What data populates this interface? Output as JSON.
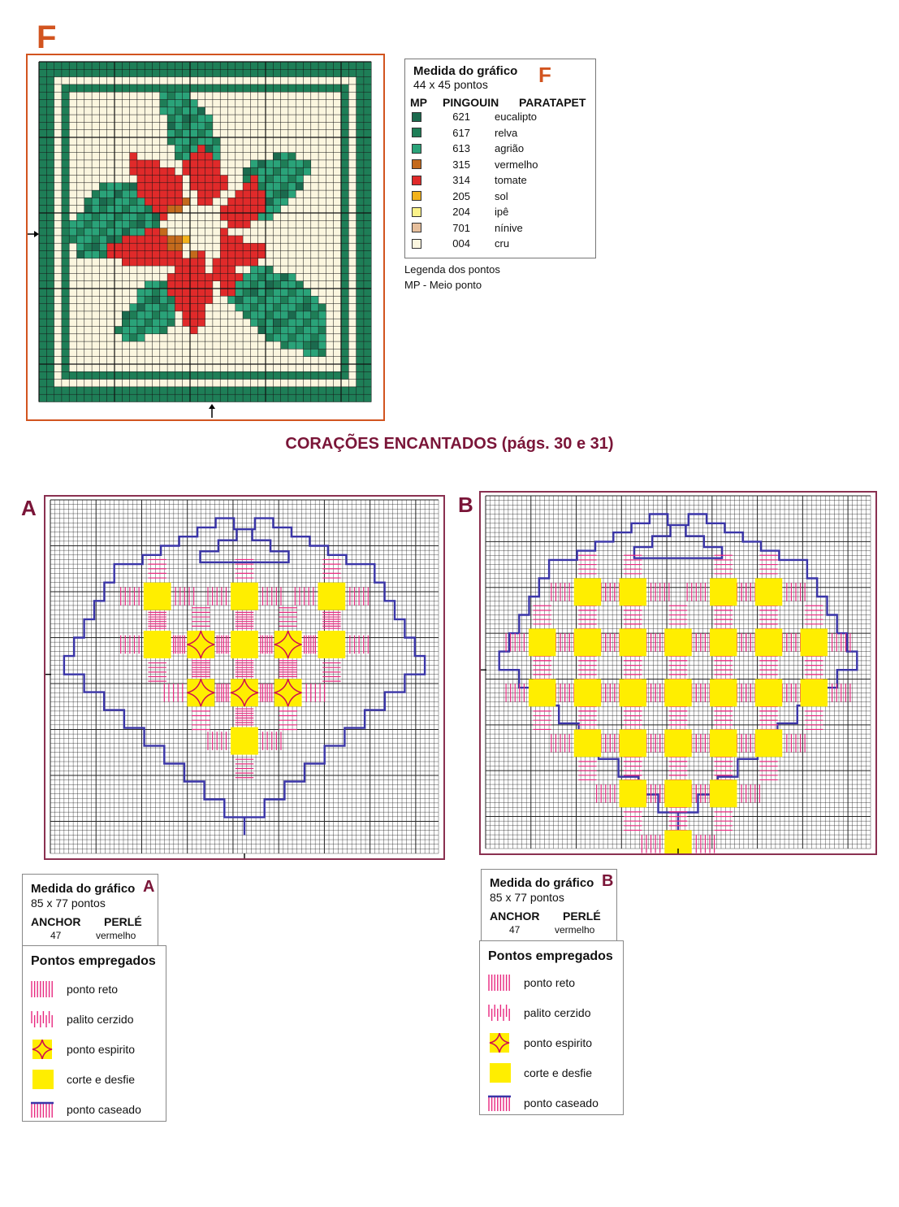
{
  "chart_f": {
    "letter": "F",
    "legend": {
      "title": "Medida do gráfico",
      "letter": "F",
      "size": "44 x 45 pontos",
      "col_headers": [
        "MP",
        "PINGOUIN",
        "PARATAPET"
      ],
      "rows": [
        {
          "code": "621",
          "name": "eucalipto",
          "color": "#1b6a4e"
        },
        {
          "code": "617",
          "name": "relva",
          "color": "#1e7e57"
        },
        {
          "code": "613",
          "name": "agrião",
          "color": "#2aa379"
        },
        {
          "code": "315",
          "name": "vermelho",
          "color": "#c46a1c"
        },
        {
          "code": "314",
          "name": "tomate",
          "color": "#e02a2a"
        },
        {
          "code": "205",
          "name": "sol",
          "color": "#f2b21b"
        },
        {
          "code": "204",
          "name": "ipê",
          "color": "#fbf28a"
        },
        {
          "code": "701",
          "name": "nínive",
          "color": "#e6bf9c"
        },
        {
          "code": "004",
          "name": "cru",
          "color": "#fbf6df"
        }
      ],
      "note1": "Legenda dos pontos",
      "note2": "MP - Meio ponto"
    }
  },
  "section_title": "CORAÇÕES ENCANTADOS (págs. 30 e 31)",
  "chart_a": {
    "letter": "A",
    "spec": {
      "title": "Medida do gráfico",
      "letter": "A",
      "size": "85 x 77 pontos",
      "brand": "ANCHOR",
      "thread": "PERLÉ",
      "code": "47",
      "color": "vermelho"
    }
  },
  "chart_b": {
    "letter": "B",
    "spec": {
      "title": "Medida do gráfico",
      "letter": "B",
      "size": "85 x 77 pontos",
      "brand": "ANCHOR",
      "thread": "PERLÉ",
      "code": "47",
      "color": "vermelho"
    }
  },
  "pontos": {
    "title": "Pontos empregados",
    "items": [
      "ponto reto",
      "palito cerzido",
      "ponto espirito",
      "corte e desfie",
      "ponto caseado"
    ]
  },
  "colors": {
    "accent_orange": "#d2541f",
    "title_maroon": "#7a1538",
    "pink": "#e8287f",
    "yellow": "#ffee00",
    "blue": "#3a35a8"
  }
}
